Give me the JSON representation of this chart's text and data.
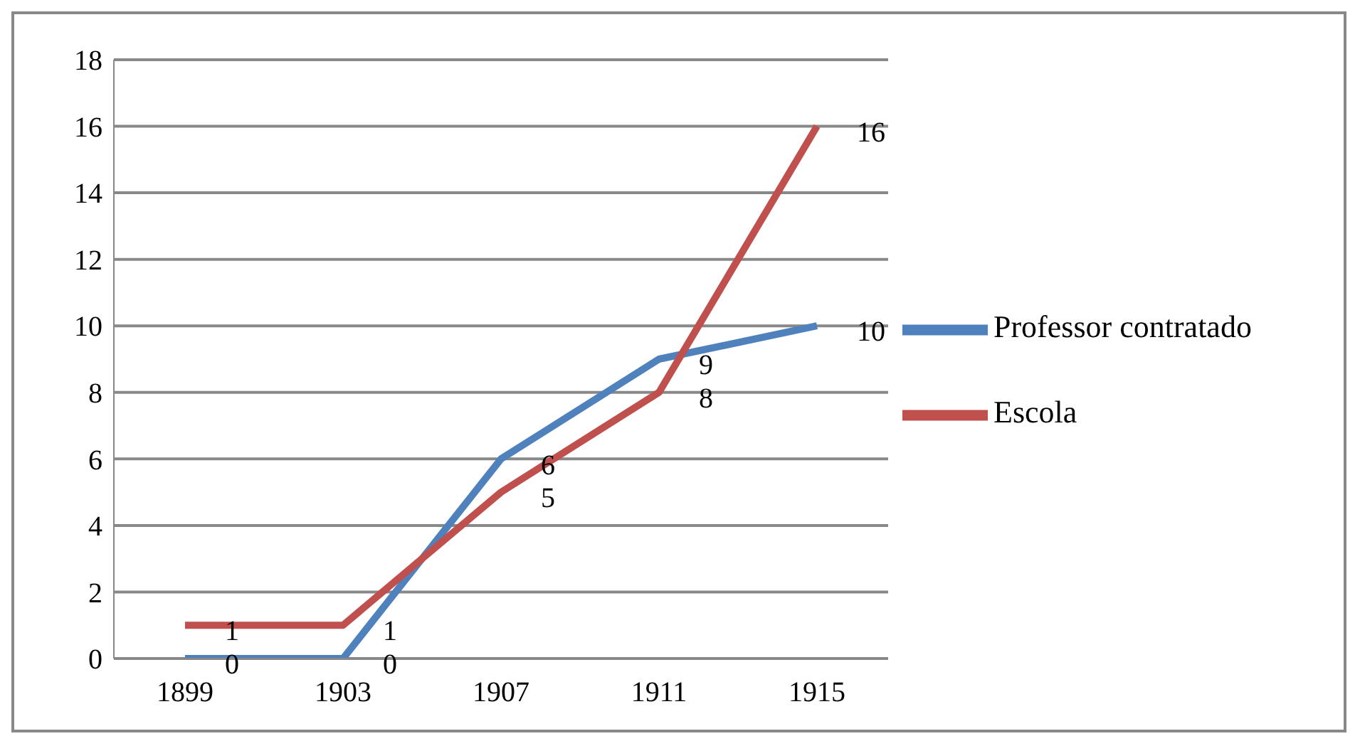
{
  "chart_data": {
    "type": "line",
    "categories": [
      "1899",
      "1903",
      "1907",
      "1911",
      "1915"
    ],
    "series": [
      {
        "name": "Professor contratado",
        "color": "#4f81bd",
        "values": [
          0,
          0,
          6,
          9,
          10
        ]
      },
      {
        "name": "Escola",
        "color": "#c0504d",
        "values": [
          1,
          1,
          5,
          8,
          16
        ]
      }
    ],
    "ylim": [
      0,
      18
    ],
    "yticks": [
      0,
      2,
      4,
      6,
      8,
      10,
      12,
      14,
      16,
      18
    ],
    "grid": "y",
    "legend": "right",
    "data_labels": true,
    "marker": "none",
    "line_style": "solid"
  }
}
